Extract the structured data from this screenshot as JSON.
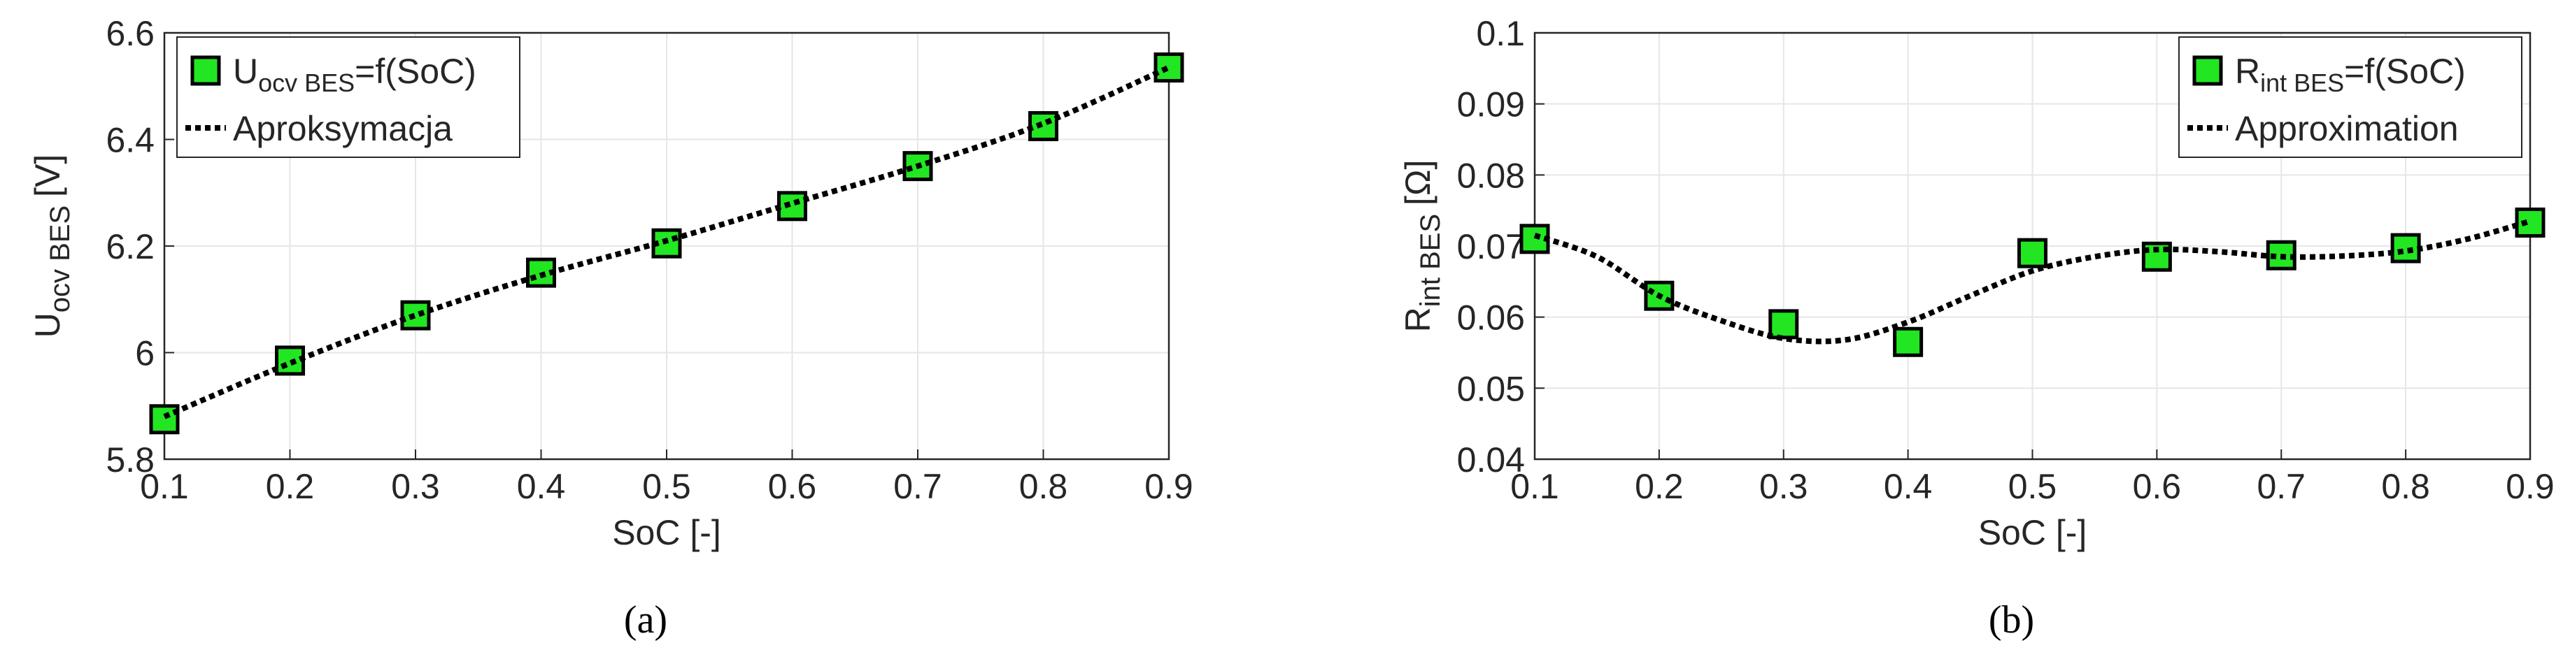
{
  "chart_data": [
    {
      "type": "line",
      "caption": "(a)",
      "xlabel": "SoC [-]",
      "ylabel": "U",
      "ylabel_sub": "ocv BES",
      "ylabel_unit": "[V]",
      "xlim": [
        0.1,
        0.9
      ],
      "xticks": [
        0.1,
        0.2,
        0.3,
        0.4,
        0.5,
        0.6,
        0.7,
        0.8,
        0.9
      ],
      "ylim": [
        5.8,
        6.6
      ],
      "yticks": [
        5.8,
        6,
        6.2,
        6.4,
        6.6
      ],
      "grid": true,
      "legend": "upper left",
      "series": [
        {
          "name": "U",
          "name_sub": "ocv BES",
          "name_tail": "=f(SoC)",
          "color": "#22e622",
          "marker": "square",
          "x": [
            0.1,
            0.2,
            0.3,
            0.4,
            0.5,
            0.6,
            0.7,
            0.8,
            0.9
          ],
          "values": [
            5.875,
            5.985,
            6.07,
            6.15,
            6.205,
            6.275,
            6.35,
            6.425,
            6.535
          ]
        },
        {
          "name": "Aproksymacja",
          "color": "#000000",
          "marker": "dotted",
          "x": [
            0.1,
            0.2,
            0.3,
            0.4,
            0.5,
            0.6,
            0.7,
            0.8,
            0.9
          ],
          "values": [
            5.88,
            5.98,
            6.07,
            6.145,
            6.21,
            6.28,
            6.35,
            6.43,
            6.535
          ]
        }
      ]
    },
    {
      "type": "line",
      "caption": "(b)",
      "xlabel": "SoC [-]",
      "ylabel": "R",
      "ylabel_sub": "int BES",
      "ylabel_unit": "[Ω]",
      "xlim": [
        0.1,
        0.9
      ],
      "xticks": [
        0.1,
        0.2,
        0.3,
        0.4,
        0.5,
        0.6,
        0.7,
        0.8,
        0.9
      ],
      "ylim": [
        0.04,
        0.1
      ],
      "yticks": [
        0.04,
        0.05,
        0.06,
        0.07,
        0.08,
        0.09,
        0.1
      ],
      "grid": true,
      "legend": "upper right",
      "series": [
        {
          "name": "R",
          "name_sub": "int BES",
          "name_tail": "=f(SoC)",
          "color": "#22e622",
          "marker": "square",
          "x": [
            0.1,
            0.2,
            0.3,
            0.4,
            0.5,
            0.6,
            0.7,
            0.8,
            0.9
          ],
          "values": [
            0.071,
            0.063,
            0.059,
            0.0565,
            0.069,
            0.0685,
            0.0687,
            0.0697,
            0.0733
          ]
        },
        {
          "name": "Approximation",
          "color": "#000000",
          "marker": "dotted",
          "x": [
            0.1,
            0.15,
            0.2,
            0.25,
            0.3,
            0.35,
            0.4,
            0.45,
            0.5,
            0.55,
            0.6,
            0.65,
            0.7,
            0.75,
            0.8,
            0.85,
            0.9
          ],
          "values": [
            0.0715,
            0.0685,
            0.063,
            0.0595,
            0.057,
            0.0568,
            0.0593,
            0.063,
            0.0665,
            0.0685,
            0.0695,
            0.0692,
            0.0685,
            0.0686,
            0.0693,
            0.071,
            0.0735
          ]
        }
      ]
    }
  ]
}
